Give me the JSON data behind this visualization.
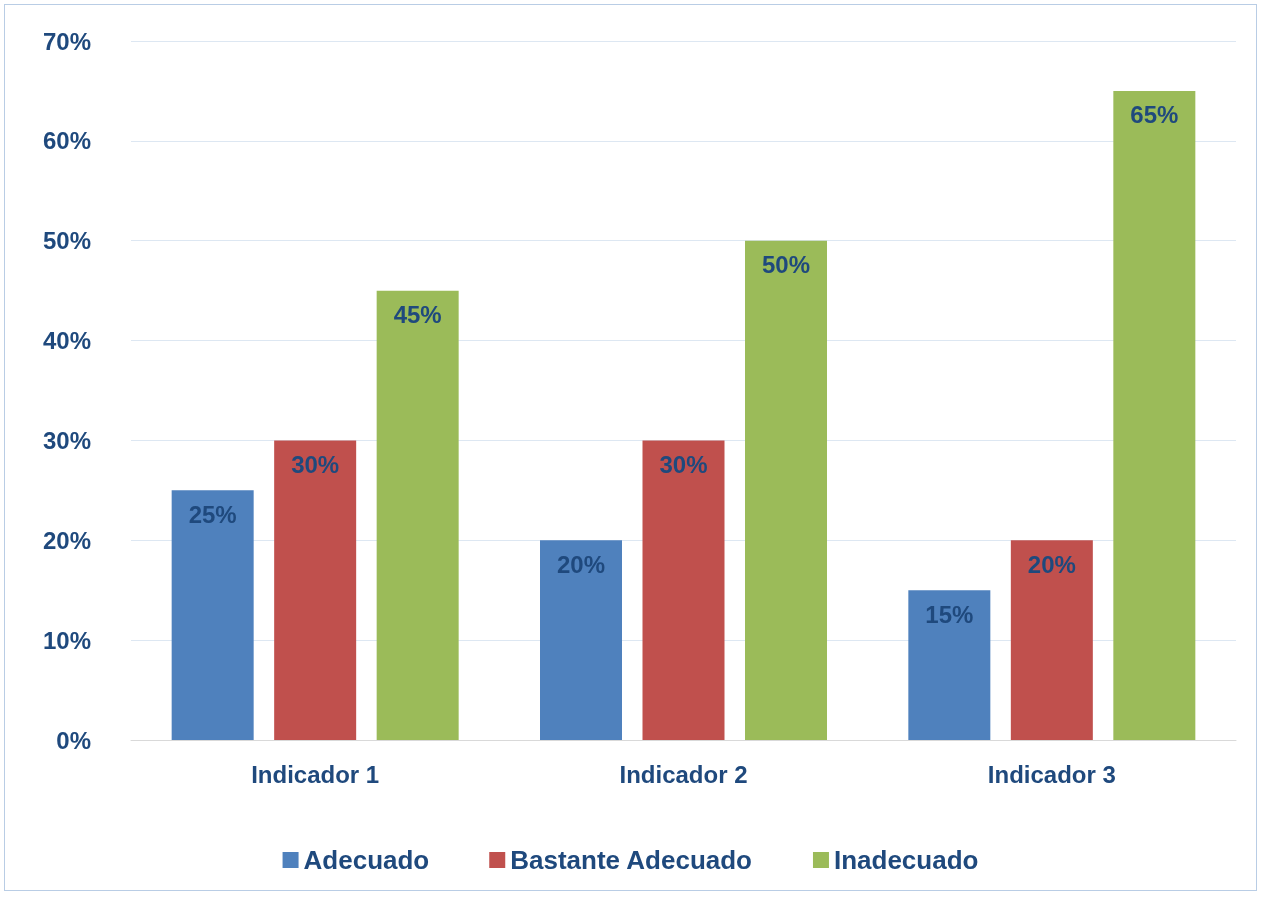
{
  "chart_data": {
    "type": "bar",
    "categories": [
      "Indicador 1",
      "Indicador 2",
      "Indicador 3"
    ],
    "series": [
      {
        "name": "Adecuado",
        "color": "#4f81bd",
        "values": [
          25,
          20,
          15
        ],
        "value_labels": [
          "25%",
          "20%",
          "15%"
        ]
      },
      {
        "name": "Bastante Adecuado",
        "color": "#c0504d",
        "values": [
          30,
          30,
          20
        ],
        "value_labels": [
          "30%",
          "30%",
          "20%"
        ]
      },
      {
        "name": "Inadecuado",
        "color": "#9bbb59",
        "values": [
          45,
          50,
          65
        ],
        "value_labels": [
          "45%",
          "50%",
          "65%"
        ]
      }
    ],
    "ylim": [
      0,
      70
    ],
    "yticks": [
      {
        "value": 0,
        "label": "0%"
      },
      {
        "value": 10,
        "label": "10%"
      },
      {
        "value": 20,
        "label": "20%"
      },
      {
        "value": 30,
        "label": "30%"
      },
      {
        "value": 40,
        "label": "40%"
      },
      {
        "value": 50,
        "label": "50%"
      },
      {
        "value": 60,
        "label": "60%"
      },
      {
        "value": 70,
        "label": "70%"
      }
    ],
    "grid": "y",
    "legend": "bottom"
  }
}
